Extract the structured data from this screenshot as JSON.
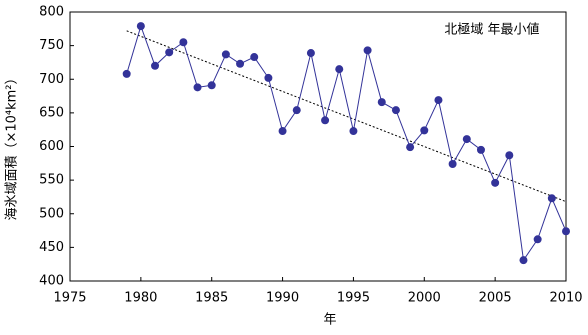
{
  "chart_data": {
    "type": "line",
    "annotation": "北極域 年最小値",
    "x_label": "年",
    "y_label": "海氷域面積（×10⁴km²）",
    "x": [
      1979,
      1980,
      1981,
      1982,
      1983,
      1984,
      1985,
      1986,
      1987,
      1988,
      1989,
      1990,
      1991,
      1992,
      1993,
      1994,
      1995,
      1996,
      1997,
      1998,
      1999,
      2000,
      2001,
      2002,
      2003,
      2004,
      2005,
      2006,
      2007,
      2008,
      2009,
      2010
    ],
    "series": [
      {
        "color": "#333399",
        "values": [
          708,
          779,
          720,
          740,
          755,
          688,
          691,
          737,
          723,
          733,
          702,
          623,
          654,
          739,
          639,
          715,
          623,
          743,
          666,
          654,
          599,
          624,
          669,
          574,
          611,
          595,
          546,
          587,
          431,
          462,
          523,
          474
        ]
      }
    ],
    "trendline": {
      "x": [
        1979,
        2010
      ],
      "values": [
        772,
        518
      ]
    },
    "xlim": [
      1975,
      2010
    ],
    "xticks": [
      1975,
      1980,
      1985,
      1990,
      1995,
      2000,
      2005,
      2010
    ],
    "ylim": [
      400,
      800
    ],
    "yticks": [
      400,
      450,
      500,
      550,
      600,
      650,
      700,
      750,
      800
    ]
  }
}
